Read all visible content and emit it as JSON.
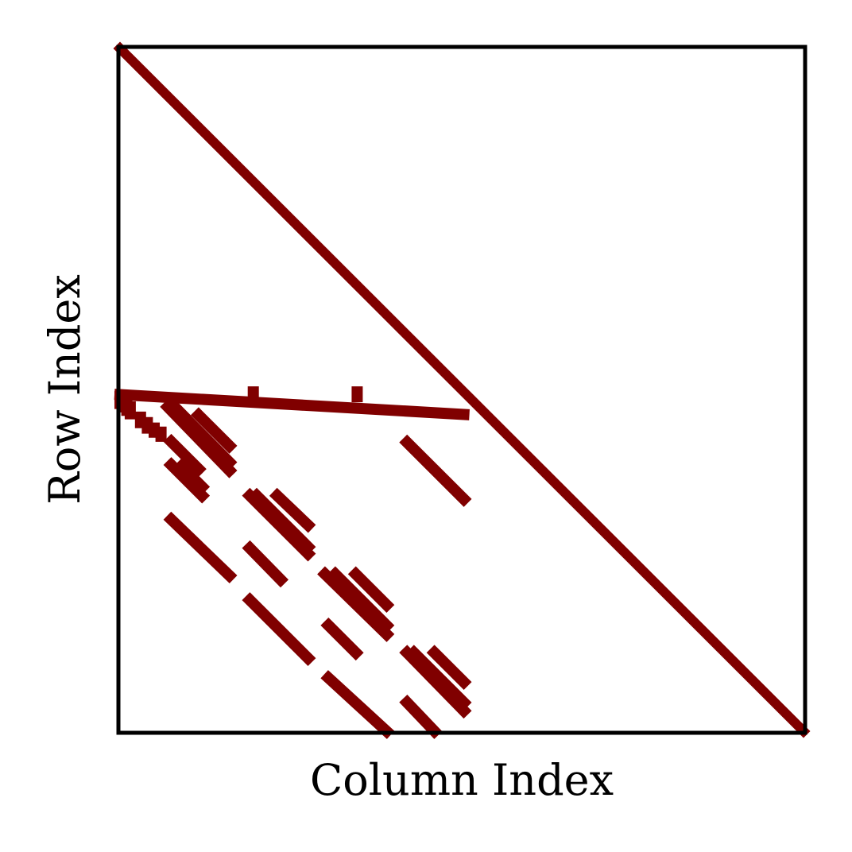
{
  "chart_data": {
    "type": "scatter",
    "subtype": "sparsity-pattern",
    "xlabel": "Column Index",
    "ylabel": "Row Index",
    "xlim": [
      0,
      1
    ],
    "ylim": [
      0,
      1
    ],
    "y_axis_inverted": true,
    "ticks_visible": false,
    "grid": false,
    "legend": "none",
    "marker_color": "#800000",
    "series": [
      {
        "segments": [
          [
            0.0,
            0.0,
            1.0,
            1.0
          ],
          [
            0.0,
            0.507,
            0.503,
            0.536
          ],
          [
            0.195,
            0.503,
            0.195,
            0.516
          ],
          [
            0.347,
            0.503,
            0.347,
            0.51
          ],
          [
            0.0,
            0.51,
            0.0,
            0.52
          ],
          [
            0.005,
            0.515,
            0.005,
            0.525
          ],
          [
            0.01,
            0.52,
            0.01,
            0.53
          ],
          [
            0.015,
            0.525,
            0.015,
            0.535
          ],
          [
            0.03,
            0.54,
            0.03,
            0.548
          ],
          [
            0.04,
            0.548,
            0.04,
            0.556
          ],
          [
            0.05,
            0.556,
            0.05,
            0.562
          ],
          [
            0.06,
            0.562,
            0.06,
            0.568
          ],
          [
            0.07,
            0.525,
            0.16,
            0.618
          ],
          [
            0.08,
            0.525,
            0.16,
            0.606
          ],
          [
            0.115,
            0.537,
            0.16,
            0.582
          ],
          [
            0.075,
            0.576,
            0.115,
            0.616
          ],
          [
            0.09,
            0.612,
            0.12,
            0.642
          ],
          [
            0.075,
            0.61,
            0.12,
            0.655
          ],
          [
            0.075,
            0.69,
            0.16,
            0.772
          ],
          [
            0.19,
            0.655,
            0.275,
            0.74
          ],
          [
            0.2,
            0.655,
            0.275,
            0.73
          ],
          [
            0.23,
            0.655,
            0.275,
            0.698
          ],
          [
            0.19,
            0.732,
            0.235,
            0.778
          ],
          [
            0.19,
            0.808,
            0.275,
            0.893
          ],
          [
            0.3,
            0.77,
            0.39,
            0.858
          ],
          [
            0.315,
            0.77,
            0.39,
            0.845
          ],
          [
            0.345,
            0.77,
            0.39,
            0.815
          ],
          [
            0.305,
            0.845,
            0.345,
            0.885
          ],
          [
            0.305,
            0.922,
            0.39,
            1.0
          ],
          [
            0.42,
            0.885,
            0.503,
            0.97
          ],
          [
            0.43,
            0.885,
            0.503,
            0.958
          ],
          [
            0.46,
            0.885,
            0.503,
            0.928
          ],
          [
            0.42,
            0.958,
            0.46,
            1.0
          ],
          [
            0.42,
            0.577,
            0.503,
            0.66
          ],
          [
            0.0,
            0.505,
            0.503,
            1.0
          ]
        ]
      }
    ]
  }
}
